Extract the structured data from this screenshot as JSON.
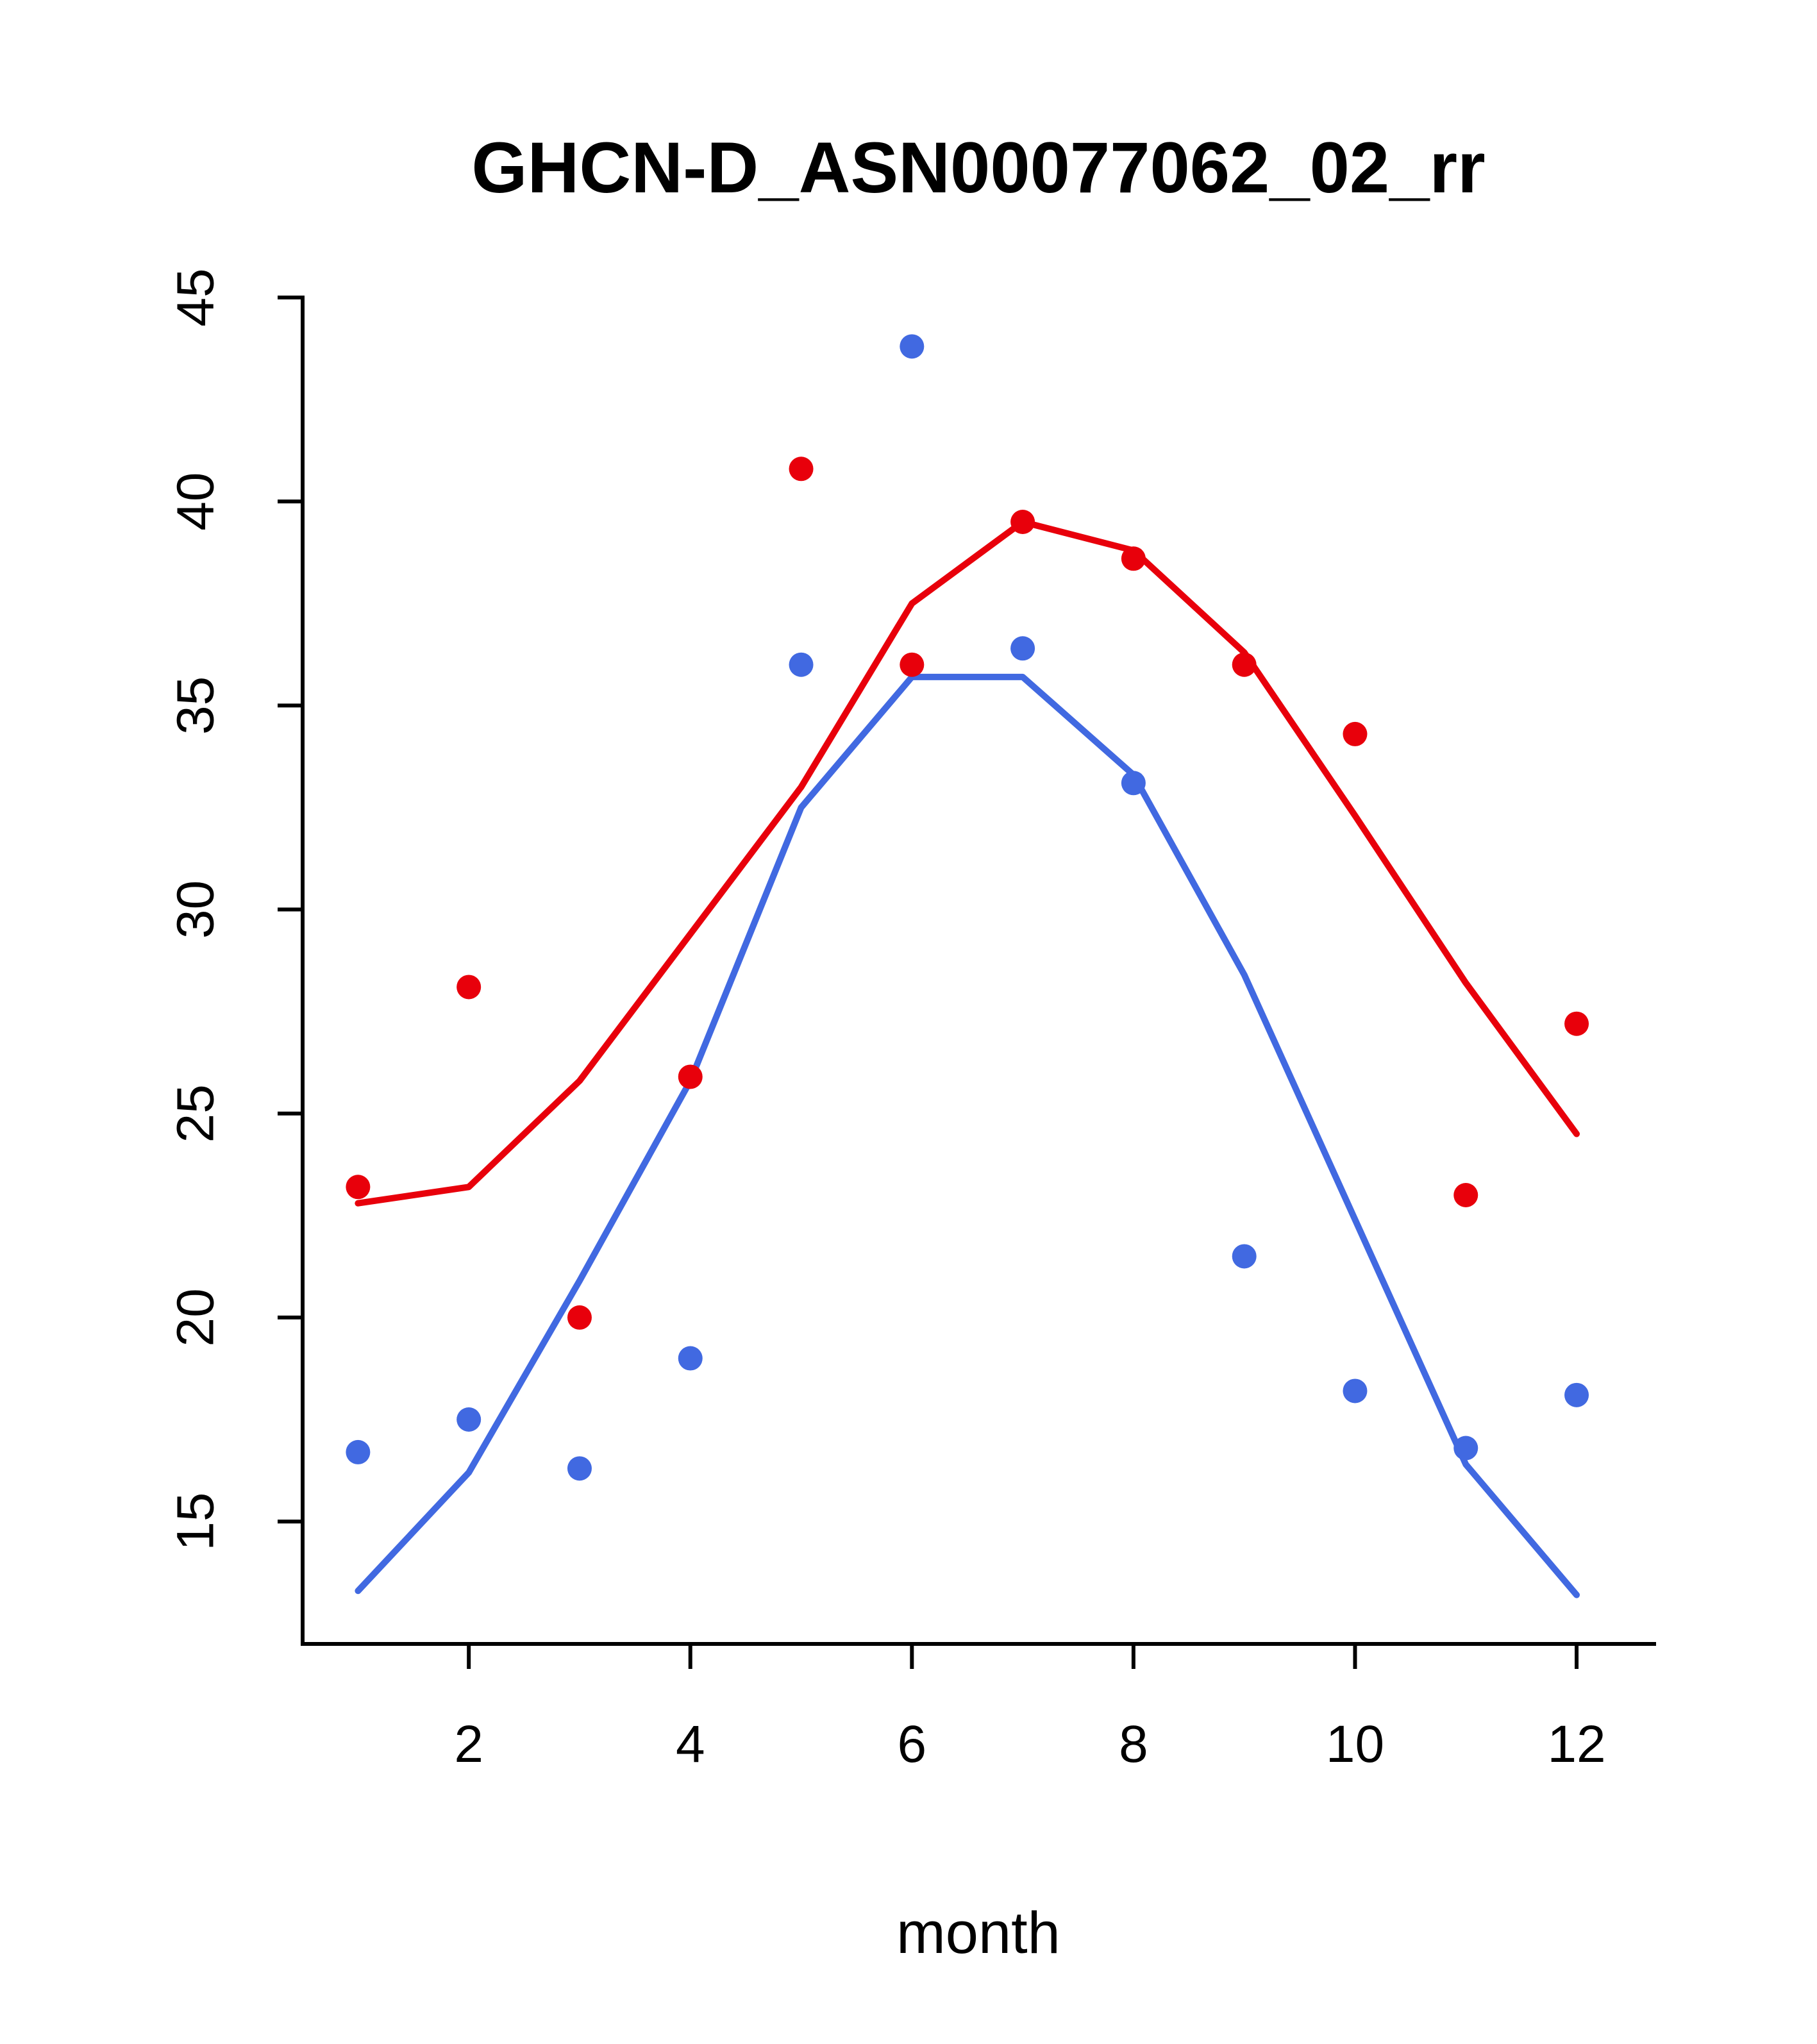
{
  "title": "GHCN-D_ASN00077062_02_rr",
  "chart_data": {
    "type": "scatter",
    "title": "GHCN-D_ASN00077062_02_rr",
    "xlabel": "month",
    "ylabel": "",
    "grid": false,
    "legend": "none",
    "xlim": [
      0.5,
      12.7
    ],
    "ylim": [
      12,
      45
    ],
    "x_ticks": [
      2,
      4,
      6,
      8,
      10,
      12
    ],
    "y_ticks": [
      15,
      20,
      25,
      30,
      35,
      40,
      45
    ],
    "x": [
      1,
      2,
      3,
      4,
      5,
      6,
      7,
      8,
      9,
      10,
      11,
      12
    ],
    "colors": {
      "red": "#e8000b",
      "blue": "#4169e1",
      "axis": "#000000"
    },
    "series": [
      {
        "name": "red-line",
        "type": "line",
        "color": "#e8000b",
        "values": [
          22.8,
          23.2,
          25.8,
          29.4,
          33.0,
          37.5,
          39.5,
          38.8,
          36.3,
          32.3,
          28.2,
          24.5
        ]
      },
      {
        "name": "blue-line",
        "type": "line",
        "color": "#4169e1",
        "values": [
          13.3,
          16.2,
          20.9,
          25.8,
          32.5,
          35.7,
          35.7,
          33.3,
          28.4,
          22.4,
          16.4,
          13.2
        ]
      },
      {
        "name": "red-points",
        "type": "points",
        "color": "#e8000b",
        "values": [
          23.2,
          28.1,
          20.0,
          25.9,
          40.8,
          36.0,
          39.5,
          38.6,
          36.0,
          34.3,
          23.0,
          27.2
        ]
      },
      {
        "name": "blue-points",
        "type": "points",
        "color": "#4169e1",
        "values": [
          16.7,
          17.5,
          16.3,
          19.0,
          36.0,
          43.8,
          36.4,
          33.1,
          21.5,
          18.2,
          16.8,
          18.1
        ]
      }
    ]
  }
}
